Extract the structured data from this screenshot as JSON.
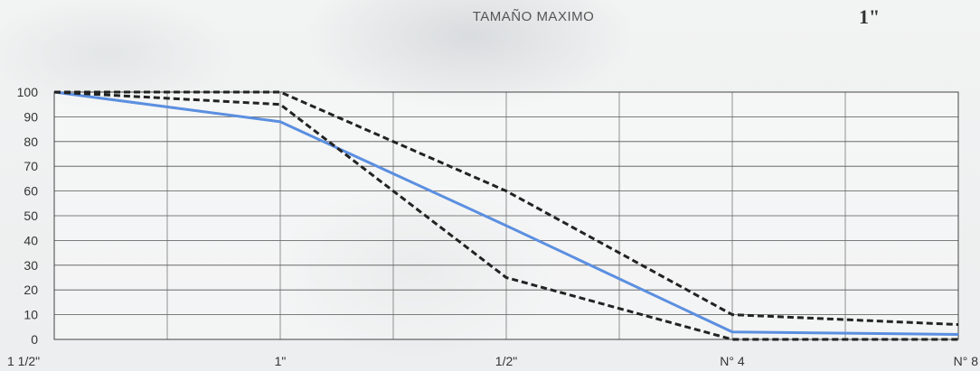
{
  "header": {
    "title": "TAMAÑO MAXIMO",
    "value": "1\""
  },
  "chart_data": {
    "type": "line",
    "title": "",
    "xlabel": "",
    "ylabel": "",
    "categories": [
      "1 1/2\"",
      "1\"",
      "1/2\"",
      "N° 4",
      "N° 8"
    ],
    "ylim": [
      0,
      100
    ],
    "yticks": [
      0,
      10,
      20,
      30,
      40,
      50,
      60,
      70,
      80,
      90,
      100
    ],
    "grid": true,
    "series": [
      {
        "style": "solid",
        "color": "#5b8fe0",
        "points": [
          {
            "x": "1 1/2\"",
            "y": 100
          },
          {
            "x": "1\"",
            "y": 88
          },
          {
            "x": "1/2\"",
            "y": 46
          },
          {
            "x": "N° 4",
            "y": 3
          },
          {
            "x": "N° 8",
            "y": 2
          }
        ]
      },
      {
        "style": "dashed",
        "color": "#222222",
        "points": [
          {
            "x": "1 1/2\"",
            "y": 100
          },
          {
            "x": "1\"",
            "y": 100
          },
          {
            "x": "1/2\"",
            "y": 60
          },
          {
            "x": "N° 4",
            "y": 10
          },
          {
            "x": "N° 8",
            "y": 6
          }
        ]
      },
      {
        "style": "dashed",
        "color": "#222222",
        "points": [
          {
            "x": "1 1/2\"",
            "y": 100
          },
          {
            "x": "1\"",
            "y": 95
          },
          {
            "x": "1/2\"",
            "y": 25
          },
          {
            "x": "N° 4",
            "y": 0
          },
          {
            "x": "N° 8",
            "y": 0
          }
        ]
      }
    ]
  }
}
